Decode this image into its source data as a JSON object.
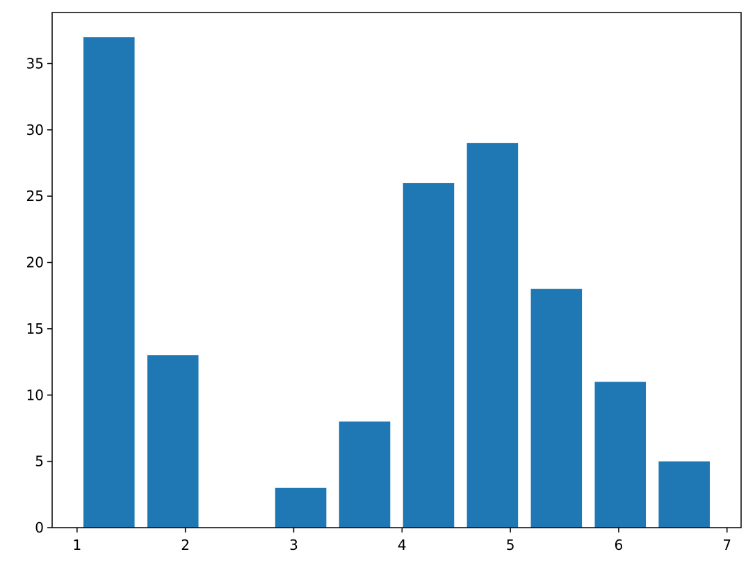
{
  "chart_data": {
    "type": "histogram",
    "bins": [
      1.0,
      1.59,
      2.18,
      2.77,
      3.36,
      3.95,
      4.54,
      5.13,
      5.72,
      6.31,
      6.9
    ],
    "values": [
      37,
      13,
      0,
      3,
      8,
      26,
      29,
      18,
      11,
      5
    ],
    "color": "#1f77b4",
    "xlim": [
      0.77,
      7.13
    ],
    "xticks": [
      1,
      2,
      3,
      4,
      5,
      6,
      7
    ],
    "ylim": [
      0,
      38.85
    ],
    "yticks": [
      0,
      5,
      10,
      15,
      20,
      25,
      30,
      35
    ],
    "grid": false
  }
}
